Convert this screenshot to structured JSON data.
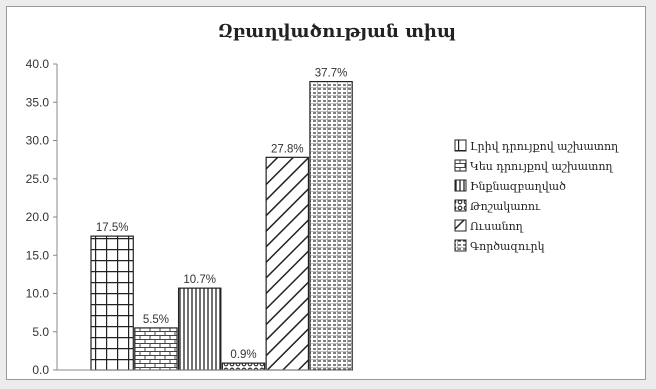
{
  "chart_data": {
    "type": "bar",
    "title": "Զբաղվածության տիպ",
    "xlabel": "",
    "ylabel": "",
    "ylim": [
      0,
      40
    ],
    "yticks": [
      "0.0",
      "5.0",
      "10.0",
      "15.0",
      "20.0",
      "25.0",
      "30.0",
      "35.0",
      "40.0"
    ],
    "grid": false,
    "legend_position": "right",
    "categories": [
      "Լրիվ դրույքով աշխատող",
      "Կես դրույքով աշխատող",
      "Ինքնազբաղված",
      "Թոշակառու",
      "Ուսանող",
      "Գործազուրկ"
    ],
    "values": [
      17.5,
      5.5,
      10.7,
      0.9,
      27.8,
      37.7
    ],
    "data_labels": [
      "17.5%",
      "5.5%",
      "10.7%",
      "0.9%",
      "27.8%",
      "37.7%"
    ],
    "patterns": [
      "grid",
      "brick",
      "vertical-lines",
      "ring",
      "diagonal",
      "dashed-grid"
    ],
    "bar_stroke_color": "#222222",
    "fill_color": "#ffffff"
  }
}
